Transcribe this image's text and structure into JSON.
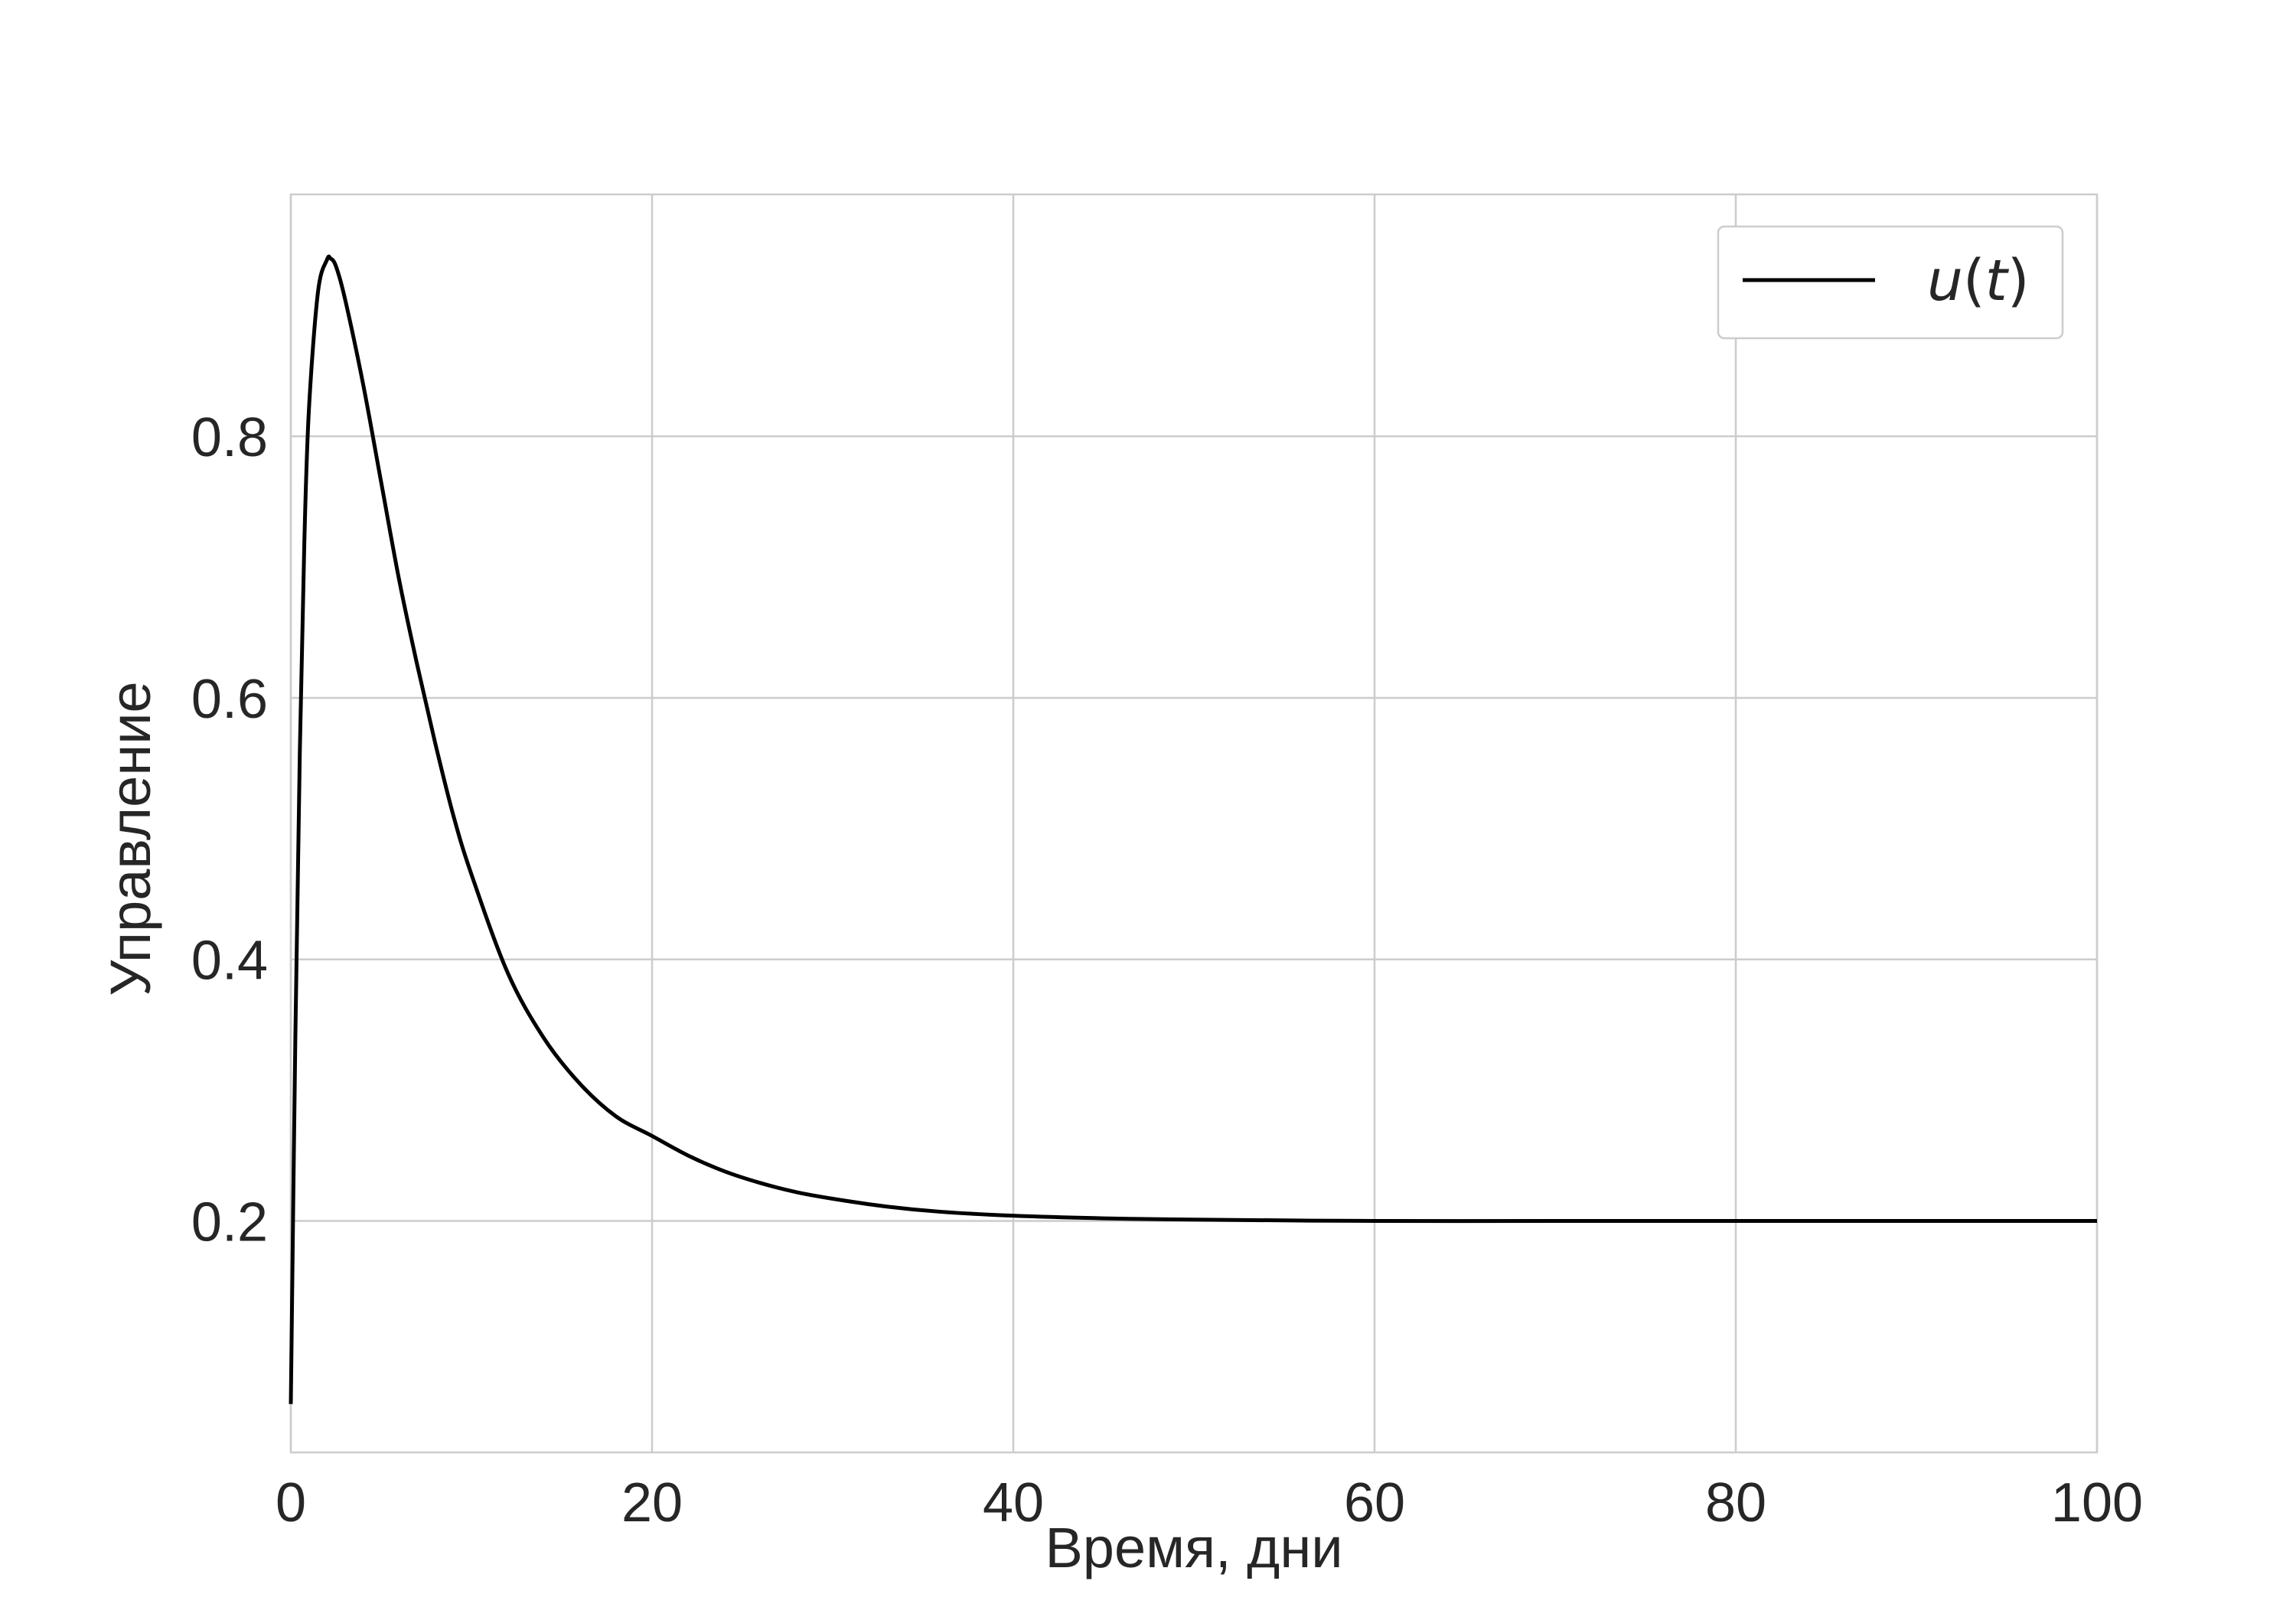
{
  "chart_data": {
    "type": "line",
    "title": "",
    "xlabel": "Время, дни",
    "ylabel": "Управление",
    "xlim": [
      0,
      100
    ],
    "ylim": [
      0.023,
      0.985
    ],
    "x_ticks": [
      "0",
      "20",
      "40",
      "60",
      "80",
      "100"
    ],
    "y_ticks": [
      "0.2",
      "0.4",
      "0.6",
      "0.8"
    ],
    "grid": true,
    "legend_position": "top-right",
    "series": [
      {
        "name": "u(t)",
        "name_parts": {
          "var": "u",
          "open": "(",
          "arg": "t",
          "close": ")"
        },
        "color": "#000000",
        "x": [
          0,
          0.25,
          0.5,
          0.75,
          1.0,
          1.5,
          2.0,
          2.2,
          2.5,
          3.0,
          4.0,
          5.0,
          6.0,
          7.0,
          8.0,
          9.0,
          10.0,
          12.0,
          14.0,
          16.0,
          18.0,
          20.0,
          22.0,
          24.0,
          26.0,
          28.0,
          30.0,
          33.0,
          36.0,
          40.0,
          45.0,
          50.0,
          60.0,
          70.0,
          80.0,
          90.0,
          100.0
        ],
        "y": [
          0.06,
          0.34,
          0.56,
          0.72,
          0.82,
          0.91,
          0.935,
          0.936,
          0.93,
          0.905,
          0.84,
          0.765,
          0.69,
          0.625,
          0.565,
          0.51,
          0.465,
          0.39,
          0.34,
          0.305,
          0.28,
          0.265,
          0.25,
          0.238,
          0.229,
          0.222,
          0.217,
          0.211,
          0.207,
          0.204,
          0.202,
          0.201,
          0.2,
          0.2,
          0.2,
          0.2,
          0.2
        ]
      }
    ]
  }
}
